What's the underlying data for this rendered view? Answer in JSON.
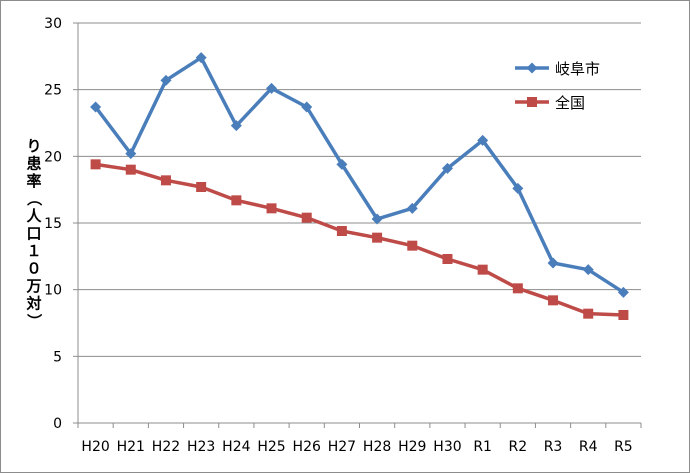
{
  "chart_data": {
    "type": "line",
    "categories": [
      "H20",
      "H21",
      "H22",
      "H23",
      "H24",
      "H25",
      "H26",
      "H27",
      "H28",
      "H29",
      "H30",
      "R1",
      "R2",
      "R3",
      "R4",
      "R5"
    ],
    "series": [
      {
        "name": "岐阜市",
        "color": "#4a7ebb",
        "marker": "diamond",
        "values": [
          23.7,
          20.2,
          25.7,
          27.4,
          22.3,
          25.1,
          23.7,
          19.4,
          15.3,
          16.1,
          19.1,
          21.2,
          17.6,
          12.0,
          11.5,
          9.8
        ]
      },
      {
        "name": "全国",
        "color": "#be4b48",
        "marker": "square",
        "values": [
          19.4,
          19.0,
          18.2,
          17.7,
          16.7,
          16.1,
          15.4,
          14.4,
          13.9,
          13.3,
          12.3,
          11.5,
          10.1,
          9.2,
          8.2,
          8.1
        ]
      }
    ],
    "ylabel": "り患率（人口１０万対）",
    "xlabel": "",
    "ylim": [
      0,
      30
    ],
    "yticks": [
      0,
      5,
      10,
      15,
      20,
      25,
      30
    ],
    "grid": true,
    "legend_position": "top-right"
  }
}
